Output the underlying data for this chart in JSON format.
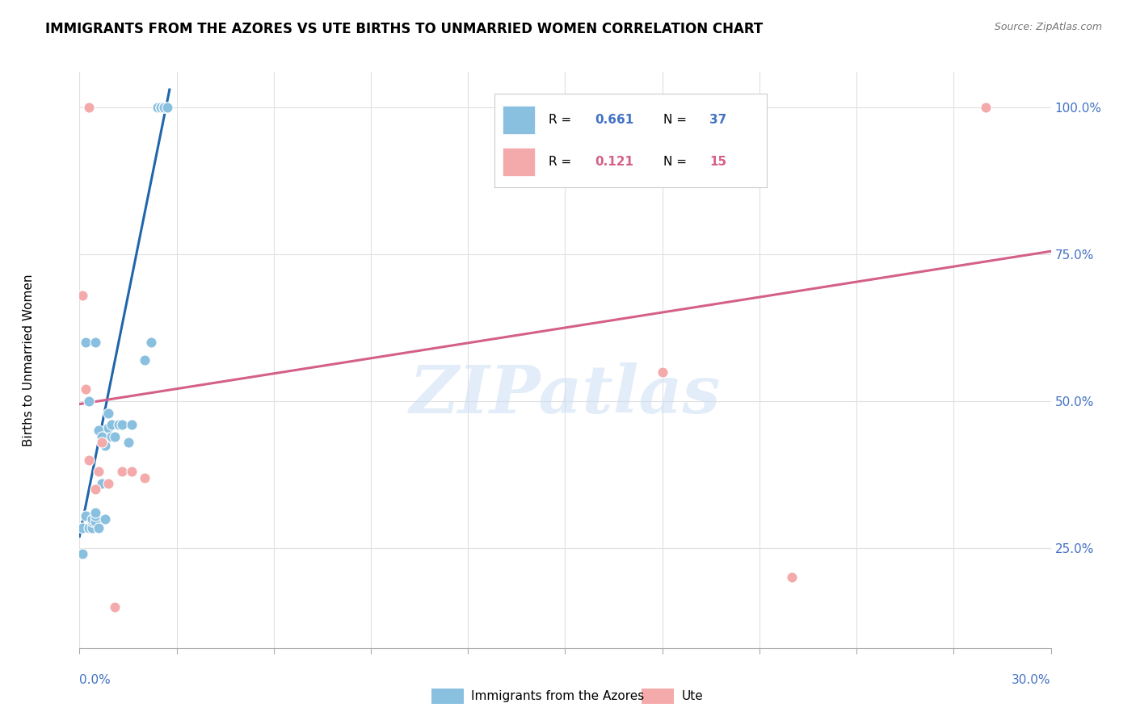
{
  "title": "IMMIGRANTS FROM THE AZORES VS UTE BIRTHS TO UNMARRIED WOMEN CORRELATION CHART",
  "source": "Source: ZipAtlas.com",
  "ylabel": "Births to Unmarried Women",
  "legend_blue_R": "0.661",
  "legend_blue_N": "37",
  "legend_pink_R": "0.121",
  "legend_pink_N": "15",
  "legend_label_blue": "Immigrants from the Azores",
  "legend_label_pink": "Ute",
  "blue_color": "#89c0e0",
  "pink_color": "#f4aaaa",
  "trendline_blue": "#2166ac",
  "trendline_pink": "#d4608a",
  "blue_scatter_x": [
    0.001,
    0.001,
    0.002,
    0.002,
    0.003,
    0.003,
    0.004,
    0.004,
    0.004,
    0.005,
    0.005,
    0.005,
    0.005,
    0.006,
    0.006,
    0.007,
    0.007,
    0.008,
    0.008,
    0.009,
    0.009,
    0.01,
    0.01,
    0.011,
    0.012,
    0.013,
    0.015,
    0.016,
    0.02,
    0.022,
    0.024,
    0.025,
    0.025,
    0.026,
    0.026,
    0.026,
    0.027
  ],
  "blue_scatter_y": [
    0.24,
    0.285,
    0.305,
    0.6,
    0.285,
    0.5,
    0.285,
    0.295,
    0.3,
    0.295,
    0.305,
    0.31,
    0.6,
    0.285,
    0.45,
    0.36,
    0.44,
    0.3,
    0.425,
    0.455,
    0.48,
    0.44,
    0.46,
    0.44,
    0.46,
    0.46,
    0.43,
    0.46,
    0.57,
    0.6,
    1.0,
    1.0,
    1.0,
    1.0,
    1.0,
    1.0,
    1.0
  ],
  "pink_scatter_x": [
    0.001,
    0.002,
    0.003,
    0.005,
    0.006,
    0.007,
    0.009,
    0.011,
    0.013,
    0.016,
    0.02,
    0.18,
    0.22,
    0.28,
    0.003
  ],
  "pink_scatter_y": [
    0.68,
    0.52,
    0.4,
    0.35,
    0.38,
    0.43,
    0.36,
    0.15,
    0.38,
    0.38,
    0.37,
    0.55,
    0.2,
    1.0,
    1.0
  ],
  "watermark": "ZIPatlas",
  "blue_trend": [
    0.0,
    0.0278,
    0.27,
    1.03
  ],
  "pink_trend": [
    0.0,
    0.3,
    0.495,
    0.755
  ],
  "xmin": 0.0,
  "xmax": 0.3,
  "ymin": 0.08,
  "ymax": 1.06,
  "ytick_vals": [
    0.25,
    0.5,
    0.75,
    1.0
  ],
  "xtick_positions": [
    0.0,
    0.03,
    0.06,
    0.09,
    0.12,
    0.15,
    0.18,
    0.21,
    0.24,
    0.27,
    0.3
  ]
}
